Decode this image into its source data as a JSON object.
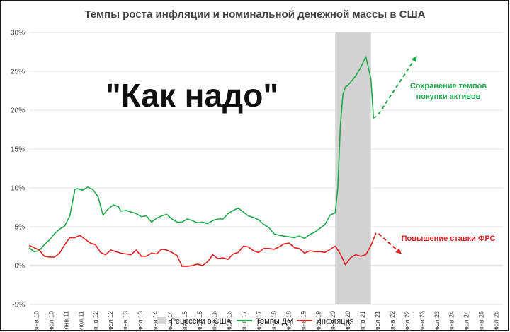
{
  "chart_data": {
    "type": "line",
    "title": "Темпы роста инфляции и номинальной денежной массы в США",
    "overlay_text": "\"Как надо\"",
    "xlabel": "",
    "ylabel": "",
    "ylim": [
      -5,
      30
    ],
    "y_ticks": [
      "30%",
      "25%",
      "20%",
      "15%",
      "10%",
      "5%",
      "0%",
      "-5%"
    ],
    "y_tick_values": [
      30,
      25,
      20,
      15,
      10,
      5,
      0,
      -5
    ],
    "x_range": [
      "2010-01",
      "2025-07"
    ],
    "x_ticks": [
      "янв.10",
      "июл.10",
      "янв.11",
      "июл.11",
      "янв.12",
      "июл.12",
      "янв.13",
      "июл.13",
      "янв.14",
      "июл.14",
      "янв.15",
      "июл.15",
      "янв.16",
      "июл.16",
      "янв.17",
      "июл.17",
      "янв.18",
      "июл.18",
      "янв.19",
      "июл.19",
      "янв.20",
      "июл.20",
      "янв.21",
      "июл.21",
      "янв.22",
      "июл.22",
      "янв.23",
      "июл.23",
      "янв.24",
      "июл.24",
      "янв.25",
      "июл.25"
    ],
    "grid": true,
    "legend_position": "bottom",
    "recession": {
      "name": "Рецессии в США",
      "start": "2020-01",
      "end": "2021-03",
      "color": "#d3d3d3"
    },
    "series": [
      {
        "name": "Темпы ДМ",
        "color": "#1fa84a",
        "x": [
          "2010-01",
          "2010-03",
          "2010-05",
          "2010-07",
          "2010-09",
          "2010-11",
          "2011-01",
          "2011-03",
          "2011-05",
          "2011-07",
          "2011-08",
          "2011-10",
          "2011-12",
          "2012-02",
          "2012-04",
          "2012-06",
          "2012-08",
          "2012-10",
          "2012-12",
          "2013-01",
          "2013-03",
          "2013-05",
          "2013-07",
          "2013-09",
          "2013-11",
          "2014-01",
          "2014-03",
          "2014-05",
          "2014-07",
          "2014-09",
          "2014-11",
          "2015-01",
          "2015-03",
          "2015-05",
          "2015-07",
          "2015-09",
          "2015-11",
          "2016-01",
          "2016-03",
          "2016-05",
          "2016-07",
          "2016-09",
          "2016-11",
          "2017-01",
          "2017-03",
          "2017-05",
          "2017-07",
          "2017-09",
          "2017-11",
          "2018-01",
          "2018-03",
          "2018-05",
          "2018-07",
          "2018-09",
          "2018-11",
          "2019-01",
          "2019-03",
          "2019-05",
          "2019-07",
          "2019-09",
          "2019-11",
          "2020-01",
          "2020-02",
          "2020-03",
          "2020-04",
          "2020-05",
          "2020-06",
          "2020-07",
          "2020-09",
          "2020-11",
          "2021-01",
          "2021-03",
          "2021-04",
          "2021-05"
        ],
        "values": [
          2.3,
          1.8,
          1.9,
          2.7,
          3.3,
          4.1,
          4.7,
          5.1,
          6.4,
          9.8,
          9.9,
          9.7,
          10.1,
          9.8,
          8.9,
          6.5,
          7.3,
          7.8,
          7.6,
          7.0,
          7.1,
          6.9,
          6.7,
          6.3,
          6.4,
          5.6,
          6.1,
          6.4,
          6.6,
          6.0,
          5.6,
          5.6,
          6.0,
          5.8,
          5.5,
          5.6,
          5.4,
          5.8,
          6.0,
          6.0,
          6.7,
          7.1,
          7.4,
          6.9,
          6.4,
          6.2,
          5.9,
          5.3,
          4.9,
          4.1,
          3.9,
          3.8,
          3.7,
          3.6,
          3.8,
          3.5,
          4.0,
          4.3,
          4.8,
          5.3,
          6.5,
          6.8,
          10.0,
          18.0,
          22.0,
          23.0,
          23.2,
          23.6,
          24.4,
          25.5,
          26.9,
          24.0,
          19.0,
          19.2
        ]
      },
      {
        "name": "Инфляция",
        "color": "#e02020",
        "x": [
          "2010-01",
          "2010-03",
          "2010-05",
          "2010-07",
          "2010-09",
          "2010-11",
          "2011-01",
          "2011-03",
          "2011-05",
          "2011-07",
          "2011-09",
          "2011-11",
          "2012-01",
          "2012-03",
          "2012-05",
          "2012-07",
          "2012-09",
          "2012-11",
          "2013-01",
          "2013-03",
          "2013-05",
          "2013-07",
          "2013-09",
          "2013-11",
          "2014-01",
          "2014-03",
          "2014-05",
          "2014-07",
          "2014-09",
          "2014-11",
          "2015-01",
          "2015-03",
          "2015-05",
          "2015-07",
          "2015-09",
          "2015-11",
          "2016-01",
          "2016-03",
          "2016-05",
          "2016-07",
          "2016-09",
          "2016-11",
          "2017-01",
          "2017-03",
          "2017-05",
          "2017-07",
          "2017-09",
          "2017-11",
          "2018-01",
          "2018-03",
          "2018-05",
          "2018-07",
          "2018-09",
          "2018-11",
          "2019-01",
          "2019-03",
          "2019-05",
          "2019-07",
          "2019-09",
          "2019-11",
          "2020-01",
          "2020-03",
          "2020-05",
          "2020-07",
          "2020-09",
          "2020-11",
          "2021-01",
          "2021-03",
          "2021-05"
        ],
        "values": [
          2.6,
          2.3,
          2.0,
          1.2,
          1.1,
          1.1,
          1.6,
          2.7,
          3.6,
          3.6,
          3.9,
          3.4,
          2.9,
          2.7,
          1.7,
          1.4,
          2.0,
          1.8,
          1.6,
          1.5,
          1.4,
          2.0,
          1.2,
          1.2,
          1.6,
          1.5,
          2.1,
          2.0,
          1.7,
          1.3,
          -0.1,
          -0.1,
          0.0,
          0.2,
          0.0,
          0.5,
          1.4,
          0.9,
          1.0,
          0.8,
          1.5,
          1.7,
          2.5,
          2.4,
          1.9,
          1.7,
          2.2,
          2.2,
          2.1,
          2.4,
          2.8,
          2.9,
          2.3,
          2.2,
          1.6,
          1.9,
          1.8,
          1.8,
          1.7,
          2.1,
          2.5,
          1.5,
          0.1,
          1.0,
          1.4,
          1.2,
          1.4,
          2.6,
          4.2
        ]
      }
    ],
    "projections": [
      {
        "color": "#1fa84a",
        "from": [
          "2021-06",
          19.5
        ],
        "to": [
          "2022-09",
          27.0
        ]
      },
      {
        "color": "#e02020",
        "from": [
          "2021-06",
          4.1
        ],
        "to": [
          "2022-03",
          1.5
        ]
      }
    ],
    "annotations": [
      {
        "lines": [
          "Сохранение темпов",
          "покупки активов"
        ],
        "color": "#1fa84a"
      },
      {
        "lines": [
          "Повышение ставки ФРС"
        ],
        "color": "#e02020"
      }
    ]
  }
}
